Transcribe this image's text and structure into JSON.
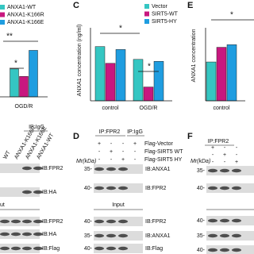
{
  "chart_data": [
    {
      "type": "bar",
      "categories": [
        "OGD/R"
      ],
      "series": [
        {
          "name": "ANXA1-WT",
          "color": "#35c6c2",
          "values": [
            0.3
          ]
        },
        {
          "name": "ANXA1-K166R",
          "color": "#c8177f",
          "values": [
            0.22
          ]
        },
        {
          "name": "ANXA1-K166E",
          "color": "#1f9de0",
          "values": [
            0.5
          ]
        }
      ],
      "ylim": [
        0,
        0.7
      ],
      "annotations": [
        "**",
        "*"
      ]
    },
    {
      "type": "bar",
      "panel": "C",
      "ylabel": "ANXA1 concentration (ng/ml)",
      "categories": [
        "control",
        "OGD/R"
      ],
      "series": [
        {
          "name": "Vector",
          "color": "#35c6c2",
          "values": [
            0.55,
            0.42
          ]
        },
        {
          "name": "SIRT5-WT",
          "color": "#c8177f",
          "values": [
            0.38,
            0.14
          ]
        },
        {
          "name": "SIRT5-HY",
          "color": "#1f9de0",
          "values": [
            0.52,
            0.4
          ]
        }
      ],
      "ylim": [
        0,
        0.7
      ],
      "annotations": [
        "*",
        "*"
      ]
    },
    {
      "type": "bar",
      "panel": "E",
      "ylabel": "ANXA1 concentration",
      "categories": [
        "control"
      ],
      "series": [
        {
          "color": "#35c6c2",
          "values": [
            0.45
          ]
        },
        {
          "color": "#c8177f",
          "values": [
            0.62
          ]
        },
        {
          "color": "#1f9de0",
          "values": [
            0.65
          ]
        }
      ],
      "ylim": [
        0,
        0.8
      ],
      "annotations": [
        "*"
      ]
    }
  ],
  "blots": {
    "left": {
      "ip": "IP:IgG",
      "lanes": [
        "WT",
        "ANXA1-K166R",
        "ANXA1-K166E",
        "ANXA1-WT"
      ],
      "rows": [
        "IB:FPR2",
        "IB:HA"
      ],
      "section": "ut",
      "input_rows": [
        "IB:FPR2",
        "IB:HA",
        "IB:Flag"
      ]
    },
    "D": {
      "label": "D",
      "ip": [
        "IP:FPR2",
        "IP:IgG"
      ],
      "conditions": [
        {
          "name": "Flag-Vector",
          "signs": [
            "+",
            "-",
            "-",
            "+"
          ]
        },
        {
          "name": "Flag-SIRT5 WT",
          "signs": [
            "-",
            "+",
            "-",
            "-"
          ]
        },
        {
          "name": "Flag-SIRT5 HY",
          "signs": [
            "-",
            "-",
            "+",
            "-"
          ]
        }
      ],
      "mr": "Mr(kDa)",
      "rows": [
        {
          "marker": "35-",
          "label": "IB:ANXA1"
        },
        {
          "marker": "40-",
          "label": "IB:FPR2"
        }
      ],
      "section": "Input",
      "input_rows": [
        {
          "marker": "40-",
          "label": "IB:FPR2"
        },
        {
          "marker": "35-",
          "label": "IB:ANXA1"
        },
        {
          "marker": "40-",
          "label": "IB:Flag"
        }
      ]
    },
    "F": {
      "label": "F",
      "ip": [
        "IP:FPR2"
      ],
      "conditions": [
        {
          "signs": [
            "+",
            "-",
            "-"
          ]
        },
        {
          "signs": [
            "-",
            "+",
            "-"
          ]
        },
        {
          "signs": [
            "-",
            "-",
            "+"
          ]
        }
      ],
      "mr": "Mr(kDa)",
      "rows": [
        {
          "marker": "35-"
        },
        {
          "marker": "40-"
        }
      ],
      "input_rows": [
        {
          "marker": "40-"
        },
        {
          "marker": "35-"
        },
        {
          "marker": "40-"
        }
      ]
    }
  },
  "labels": {
    "C": "C",
    "E": "E"
  }
}
